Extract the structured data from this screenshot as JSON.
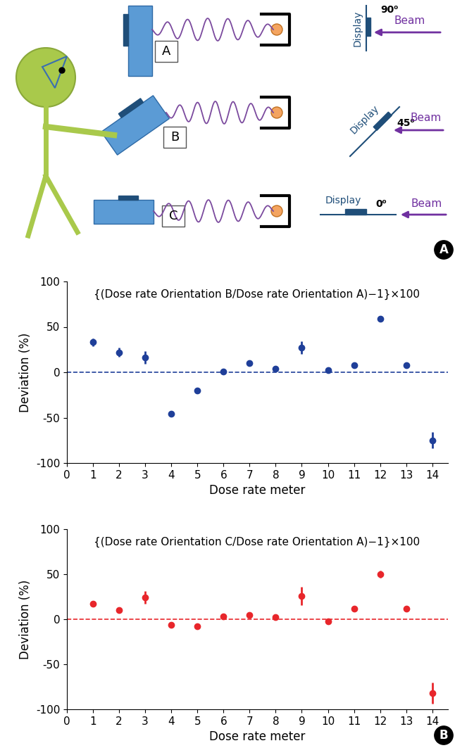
{
  "diagram": {
    "devices": [
      "A",
      "B",
      "C"
    ],
    "orientations": [
      {
        "angle": "90⁰",
        "display": "Display",
        "beam": "Beam"
      },
      {
        "angle": "45⁰",
        "display": "Display",
        "beam": "Beam"
      },
      {
        "angle": "0⁰",
        "display": "Display",
        "beam": "Beam"
      }
    ]
  },
  "panel_labels": [
    "A",
    "B"
  ],
  "chart_data": [
    {
      "type": "scatter",
      "annotation": "{(Dose rate Orientation B/Dose rate Orientation A)−1}×100",
      "x": [
        1,
        2,
        3,
        4,
        5,
        6,
        7,
        8,
        9,
        10,
        11,
        12,
        13,
        14
      ],
      "values": [
        33,
        22,
        16,
        -46,
        -20,
        1,
        10,
        4,
        27,
        2,
        8,
        59,
        8,
        -75
      ],
      "errors": [
        4,
        5,
        7,
        2,
        2,
        1,
        2,
        1,
        7,
        1,
        1,
        3,
        1,
        9
      ],
      "color": "#1f3f99",
      "marker": "o",
      "baseline": 0,
      "x_label": "Dose rate meter",
      "y_label": "Deviation (%)",
      "xlim": [
        0,
        14.6
      ],
      "ylim": [
        -100,
        100
      ],
      "xticks": [
        0,
        1,
        2,
        3,
        4,
        5,
        6,
        7,
        8,
        9,
        10,
        11,
        12,
        13,
        14
      ],
      "yticks": [
        -100,
        -50,
        0,
        50,
        100
      ]
    },
    {
      "type": "scatter",
      "annotation": "{(Dose rate Orientation C/Dose rate Orientation A)−1}×100",
      "x": [
        1,
        2,
        3,
        4,
        5,
        6,
        7,
        8,
        9,
        10,
        11,
        12,
        13,
        14
      ],
      "values": [
        17,
        10,
        24,
        -6,
        -8,
        3,
        5,
        2,
        26,
        -2,
        12,
        50,
        12,
        -82
      ],
      "errors": [
        2,
        2,
        7,
        1,
        1,
        1,
        1,
        1,
        10,
        1,
        2,
        4,
        2,
        12
      ],
      "color": "#e8262b",
      "marker": "o",
      "baseline": 0,
      "x_label": "Dose rate meter",
      "y_label": "Deviation (%)",
      "xlim": [
        0,
        14.6
      ],
      "ylim": [
        -100,
        100
      ],
      "xticks": [
        0,
        1,
        2,
        3,
        4,
        5,
        6,
        7,
        8,
        9,
        10,
        11,
        12,
        13,
        14
      ],
      "yticks": [
        -100,
        -50,
        0,
        50,
        100
      ]
    }
  ]
}
